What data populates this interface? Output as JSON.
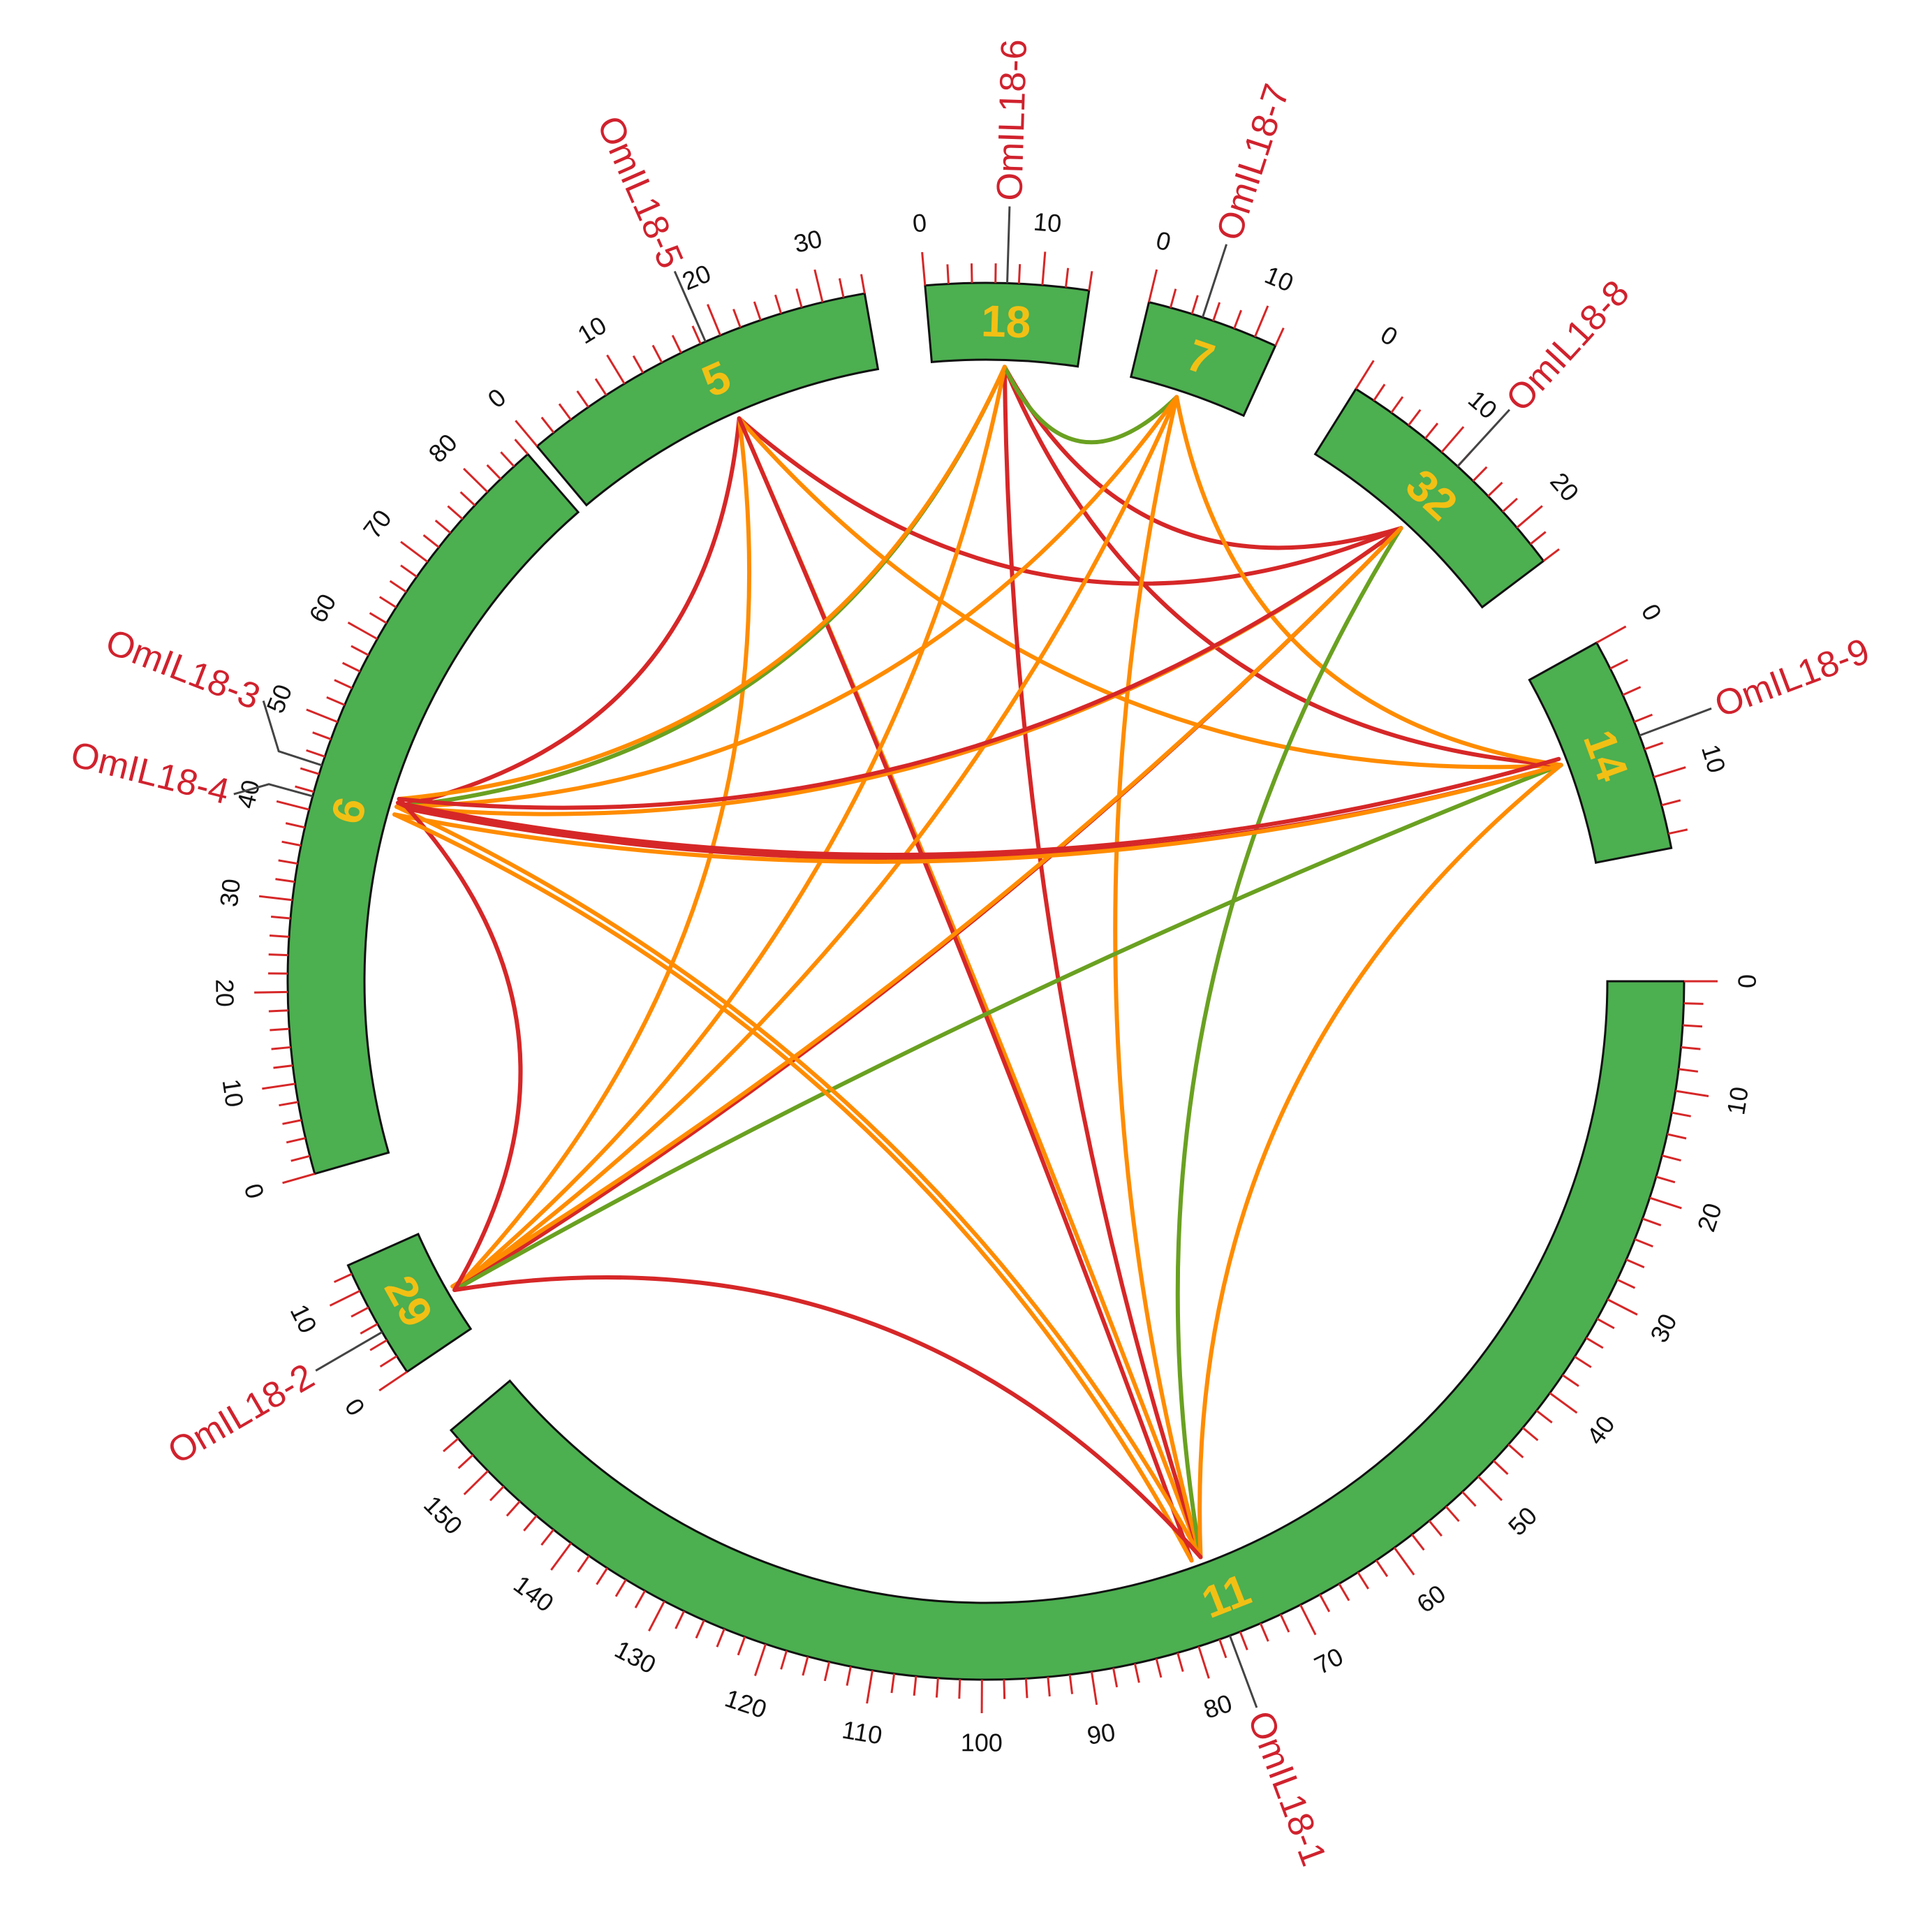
{
  "diagram": {
    "type": "circos",
    "colors": {
      "segment": "#4caf50",
      "segment_label": "#f2c014",
      "tick": "#d62728",
      "gene_label": "#d0222e",
      "gene_pointer": "#444444",
      "link_red": "#d62728",
      "link_orange": "#ff8c00",
      "link_green": "#6aa121"
    },
    "chromosomes": [
      {
        "id": "5",
        "label": "5",
        "length": 34,
        "major_ticks": [
          0,
          10,
          20,
          30
        ]
      },
      {
        "id": "18",
        "label": "18",
        "length": 14,
        "major_ticks": [
          0,
          10
        ]
      },
      {
        "id": "7",
        "label": "7",
        "length": 12,
        "major_ticks": [
          0,
          10
        ]
      },
      {
        "id": "32",
        "label": "32",
        "length": 24,
        "major_ticks": [
          0,
          10,
          20
        ]
      },
      {
        "id": "14",
        "label": "14",
        "length": 15,
        "major_ticks": [
          0,
          10
        ]
      },
      {
        "id": "11",
        "label": "11",
        "length": 155,
        "major_ticks": [
          0,
          10,
          20,
          30,
          40,
          50,
          60,
          70,
          80,
          90,
          100,
          110,
          120,
          130,
          140,
          150
        ]
      },
      {
        "id": "29",
        "label": "29",
        "length": 13,
        "major_ticks": [
          0,
          10
        ]
      },
      {
        "id": "6",
        "label": "6",
        "length": 86,
        "major_ticks": [
          0,
          10,
          20,
          30,
          40,
          50,
          60,
          70,
          80
        ]
      }
    ],
    "genes": [
      {
        "name": "OmIL18-1",
        "chrom": "11",
        "pos": 77
      },
      {
        "name": "OmIL18-2",
        "chrom": "29",
        "pos": 5
      },
      {
        "name": "OmIL18-3",
        "chrom": "6",
        "pos": 45
      },
      {
        "name": "OmIL18-4",
        "chrom": "6",
        "pos": 41.5
      },
      {
        "name": "OmIL18-5",
        "chrom": "5",
        "pos": 18.5
      },
      {
        "name": "OmIL18-6",
        "chrom": "18",
        "pos": 7
      },
      {
        "name": "OmIL18-7",
        "chrom": "7",
        "pos": 5
      },
      {
        "name": "OmIL18-8",
        "chrom": "32",
        "pos": 12
      },
      {
        "name": "OmIL18-9",
        "chrom": "14",
        "pos": 7
      }
    ],
    "links": [
      {
        "a": [
          "5",
          18.5
        ],
        "b": [
          "6",
          43
        ],
        "color": "link_red"
      },
      {
        "a": [
          "5",
          18.5
        ],
        "b": [
          "32",
          12
        ],
        "color": "link_red"
      },
      {
        "a": [
          "5",
          18.5
        ],
        "b": [
          "14",
          7
        ],
        "color": "link_orange"
      },
      {
        "a": [
          "5",
          18.5
        ],
        "b": [
          "11",
          77
        ],
        "color": "link_orange"
      },
      {
        "a": [
          "5",
          18.5
        ],
        "b": [
          "29",
          5
        ],
        "color": "link_orange"
      },
      {
        "a": [
          "5",
          18.5
        ],
        "b": [
          "11",
          78
        ],
        "color": "link_red"
      },
      {
        "a": [
          "18",
          7
        ],
        "b": [
          "6",
          43
        ],
        "color": "link_green"
      },
      {
        "a": [
          "18",
          7
        ],
        "b": [
          "32",
          12
        ],
        "color": "link_red"
      },
      {
        "a": [
          "18",
          7
        ],
        "b": [
          "14",
          7
        ],
        "color": "link_red"
      },
      {
        "a": [
          "18",
          7
        ],
        "b": [
          "11",
          77
        ],
        "color": "link_red"
      },
      {
        "a": [
          "18",
          7
        ],
        "b": [
          "29",
          5
        ],
        "color": "link_orange"
      },
      {
        "a": [
          "18",
          7
        ],
        "b": [
          "7",
          5
        ],
        "color": "link_green"
      },
      {
        "a": [
          "18",
          7
        ],
        "b": [
          "6",
          44
        ],
        "color": "link_orange"
      },
      {
        "a": [
          "7",
          5
        ],
        "b": [
          "6",
          43
        ],
        "color": "link_orange"
      },
      {
        "a": [
          "7",
          5
        ],
        "b": [
          "29",
          5
        ],
        "color": "link_orange"
      },
      {
        "a": [
          "7",
          5
        ],
        "b": [
          "11",
          77
        ],
        "color": "link_orange"
      },
      {
        "a": [
          "7",
          5
        ],
        "b": [
          "14",
          7
        ],
        "color": "link_orange"
      },
      {
        "a": [
          "32",
          12
        ],
        "b": [
          "6",
          43
        ],
        "color": "link_orange"
      },
      {
        "a": [
          "32",
          12
        ],
        "b": [
          "29",
          5
        ],
        "color": "link_red"
      },
      {
        "a": [
          "32",
          12
        ],
        "b": [
          "11",
          77
        ],
        "color": "link_green"
      },
      {
        "a": [
          "32",
          12
        ],
        "b": [
          "6",
          44
        ],
        "color": "link_red"
      },
      {
        "a": [
          "32",
          12
        ],
        "b": [
          "29",
          5.5
        ],
        "color": "link_orange"
      },
      {
        "a": [
          "14",
          7
        ],
        "b": [
          "6",
          43
        ],
        "color": "link_red"
      },
      {
        "a": [
          "14",
          7
        ],
        "b": [
          "29",
          5
        ],
        "color": "link_green"
      },
      {
        "a": [
          "14",
          7
        ],
        "b": [
          "11",
          77
        ],
        "color": "link_orange"
      },
      {
        "a": [
          "14",
          7
        ],
        "b": [
          "6",
          42
        ],
        "color": "link_orange"
      },
      {
        "a": [
          "6",
          43
        ],
        "b": [
          "11",
          77
        ],
        "color": "link_orange"
      },
      {
        "a": [
          "6",
          44
        ],
        "b": [
          "29",
          5
        ],
        "color": "link_red"
      },
      {
        "a": [
          "6",
          42
        ],
        "b": [
          "11",
          78
        ],
        "color": "link_orange"
      },
      {
        "a": [
          "29",
          5
        ],
        "b": [
          "11",
          77
        ],
        "color": "link_red"
      },
      {
        "a": [
          "6",
          43.5
        ],
        "b": [
          "14",
          6.5
        ],
        "color": "link_red"
      }
    ]
  }
}
